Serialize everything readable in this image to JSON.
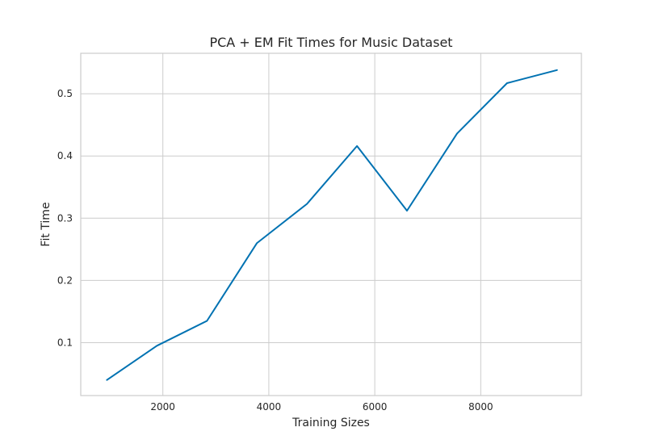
{
  "chart_data": {
    "type": "line",
    "title": "PCA + EM Fit Times for Music Dataset",
    "xlabel": "Training Sizes",
    "ylabel": "Fit Time",
    "xlim": [
      450,
      9900
    ],
    "ylim": [
      0.015,
      0.565
    ],
    "x_ticks": [
      2000,
      4000,
      6000,
      8000
    ],
    "y_ticks": [
      0.1,
      0.2,
      0.3,
      0.4,
      0.5
    ],
    "grid": true,
    "series": [
      {
        "color": "#0072b2",
        "x": [
          944,
          1888,
          2832,
          3776,
          4720,
          5664,
          6608,
          7552,
          8496,
          9440
        ],
        "y": [
          0.04,
          0.095,
          0.135,
          0.26,
          0.323,
          0.416,
          0.312,
          0.436,
          0.517,
          0.538
        ]
      }
    ]
  }
}
